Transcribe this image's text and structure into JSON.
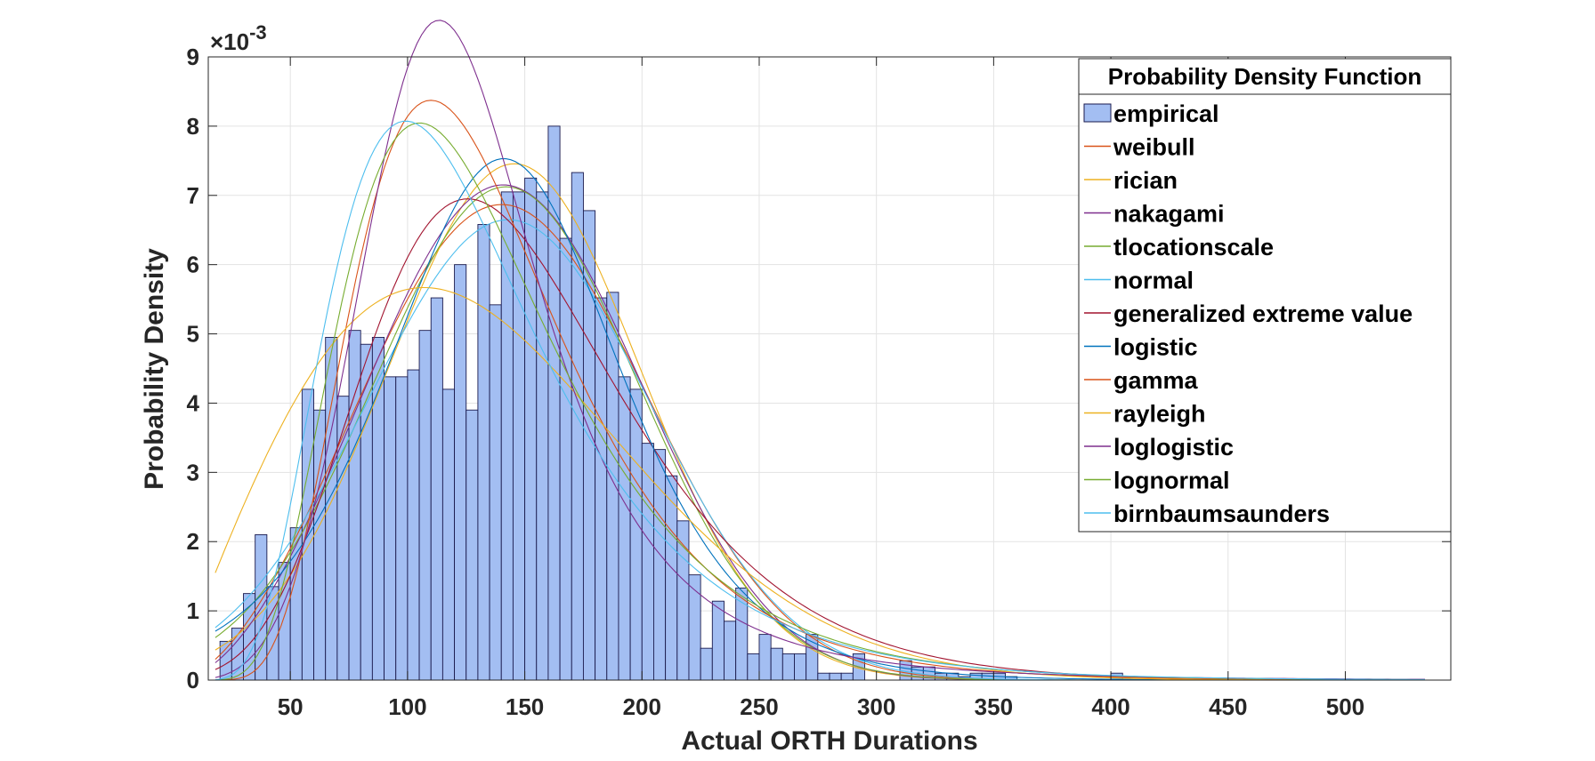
{
  "chart_data": {
    "type": "bar",
    "title": "",
    "xlabel": "Actual ORTH Durations",
    "ylabel": "Probability Density",
    "y_exponent_label": "×10",
    "y_exponent_power": "-3",
    "xlim": [
      15,
      545
    ],
    "ylim": [
      0,
      9
    ],
    "x_ticks": [
      50,
      100,
      150,
      200,
      250,
      300,
      350,
      400,
      450,
      500
    ],
    "y_ticks": [
      0,
      1,
      2,
      3,
      4,
      5,
      6,
      7,
      8,
      9
    ],
    "grid": true,
    "legend_title": "Probability Density Function",
    "legend_position": "top-right",
    "histogram": {
      "name": "empirical",
      "color": "#A3BEF2",
      "edge_color": "#1a1a4d",
      "bin_width": 5,
      "bin_starts": [
        20,
        25,
        30,
        35,
        40,
        45,
        50,
        55,
        60,
        65,
        70,
        75,
        80,
        85,
        90,
        95,
        100,
        105,
        110,
        115,
        120,
        125,
        130,
        135,
        140,
        145,
        150,
        155,
        160,
        165,
        170,
        175,
        180,
        185,
        190,
        195,
        200,
        205,
        210,
        215,
        220,
        225,
        230,
        235,
        240,
        245,
        250,
        255,
        260,
        265,
        270,
        275,
        280,
        285,
        290,
        295,
        300,
        305,
        310,
        315,
        320,
        325,
        330,
        335,
        340,
        345,
        350,
        355,
        360,
        365,
        370,
        375,
        380,
        385,
        390,
        395,
        400,
        405,
        410
      ],
      "values": [
        0.56,
        0.75,
        1.25,
        2.1,
        1.35,
        1.7,
        2.2,
        4.2,
        3.9,
        4.95,
        4.1,
        5.05,
        4.85,
        4.95,
        4.38,
        4.38,
        4.48,
        5.05,
        5.52,
        4.2,
        6.0,
        3.9,
        6.58,
        5.42,
        7.05,
        7.05,
        7.25,
        7.05,
        8.0,
        6.38,
        7.33,
        6.78,
        5.52,
        5.6,
        4.38,
        4.2,
        3.42,
        3.33,
        2.95,
        2.3,
        1.52,
        0.46,
        1.14,
        0.85,
        1.33,
        0.38,
        0.66,
        0.46,
        0.38,
        0.38,
        0.66,
        0.1,
        0.1,
        0.1,
        0.38,
        0.0,
        0.0,
        0.0,
        0.28,
        0.19,
        0.19,
        0.1,
        0.1,
        0.05,
        0.1,
        0.1,
        0.1,
        0.05,
        0.0,
        0.0,
        0.0,
        0.0,
        0.0,
        0.0,
        0.0,
        0.0,
        0.1,
        0.0,
        0.0
      ]
    },
    "series": [
      {
        "name": "weibull",
        "color": "#D95319",
        "dist": "weibull",
        "params": [
          163.3,
          2.84
        ]
      },
      {
        "name": "rician",
        "color": "#EDB120",
        "dist": "normal",
        "params": [
          145.5,
          53.5
        ]
      },
      {
        "name": "nakagami",
        "color": "#7E2F8E",
        "dist": "weibull",
        "params": [
          162.0,
          2.95
        ]
      },
      {
        "name": "tlocationscale",
        "color": "#77AC30",
        "dist": "normal",
        "params": [
          142.0,
          56.0
        ]
      },
      {
        "name": "normal",
        "color": "#4DBEEE",
        "dist": "normal",
        "params": [
          143.0,
          60.0
        ]
      },
      {
        "name": "generalized extreme value",
        "color": "#A2142F",
        "dist": "gev",
        "params": [
          123.0,
          53.0,
          -0.05
        ]
      },
      {
        "name": "logistic",
        "color": "#0072BD",
        "dist": "logistic",
        "params": [
          141.0,
          33.2
        ]
      },
      {
        "name": "gamma",
        "color": "#D95319",
        "dist": "lognormal",
        "params": [
          4.86,
          0.4
        ]
      },
      {
        "name": "rayleigh",
        "color": "#EDB120",
        "dist": "rayleigh",
        "params": [
          107.0
        ]
      },
      {
        "name": "loglogistic",
        "color": "#7E2F8E",
        "dist": "loglogistic",
        "params": [
          4.83,
          0.22
        ]
      },
      {
        "name": "lognormal",
        "color": "#77AC30",
        "dist": "lognormal",
        "params": [
          4.84,
          0.43
        ]
      },
      {
        "name": "birnbaumsaunders",
        "color": "#4DBEEE",
        "dist": "lognormal",
        "params": [
          4.8,
          0.45
        ]
      }
    ]
  }
}
